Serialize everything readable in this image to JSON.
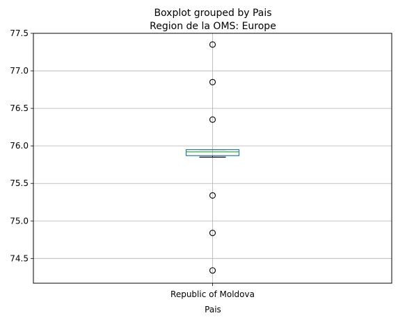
{
  "chart_data": {
    "type": "boxplot",
    "suptitle": "Boxplot grouped by Pais",
    "title": "Region de la OMS: Europe",
    "xlabel": "Pais",
    "ylabel": "",
    "ylim": [
      74.17,
      77.5
    ],
    "yticks": [
      "74.5",
      "75.0",
      "75.5",
      "76.0",
      "76.5",
      "77.0",
      "77.5"
    ],
    "grid": true,
    "categories": [
      "Republic of Moldova"
    ],
    "boxes": [
      {
        "category": "Republic of Moldova",
        "whisker_low": 75.85,
        "q1": 75.87,
        "median": 75.92,
        "q3": 75.95,
        "whisker_high": 75.95,
        "outliers": [
          77.35,
          76.85,
          76.35,
          75.34,
          74.84,
          74.34
        ]
      }
    ],
    "colors": {
      "box": "#1f77b4",
      "median": "#2ca02c",
      "whisker": "#000000",
      "grid": "#b0b0b0"
    }
  }
}
